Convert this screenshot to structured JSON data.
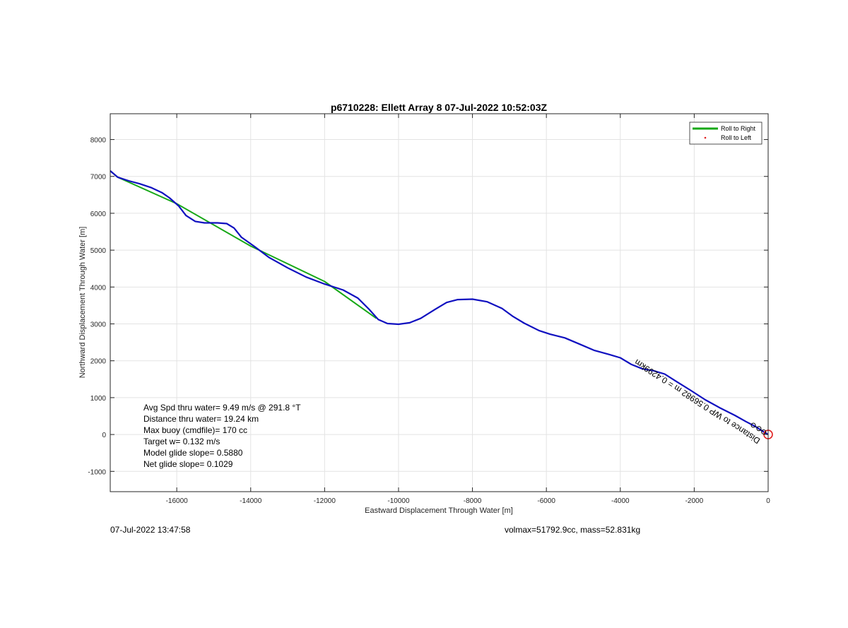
{
  "chart_data": {
    "type": "line",
    "title": "p6710228: Ellett Array 8 07-Jul-2022 10:52:03Z",
    "xlabel": "Eastward Displacement Through Water [m]",
    "ylabel": "Northward Displacement Through Water [m]",
    "xlim": [
      -17800,
      0
    ],
    "ylim": [
      -1550,
      8700
    ],
    "xticks": [
      -16000,
      -14000,
      -12000,
      -10000,
      -8000,
      -6000,
      -4000,
      -2000,
      0
    ],
    "yticks": [
      -1000,
      0,
      1000,
      2000,
      3000,
      4000,
      5000,
      6000,
      7000,
      8000
    ],
    "grid": true,
    "legend": {
      "placement": "top-right",
      "entries": [
        "Roll to Right",
        "Roll to Left"
      ]
    },
    "series": [
      {
        "name": "Roll to Right",
        "color": "#17a817",
        "style": "line",
        "points": [
          [
            -17800,
            7150
          ],
          [
            -17600,
            6980
          ],
          [
            -16000,
            6260
          ],
          [
            -14000,
            5110
          ],
          [
            -12000,
            4150
          ],
          [
            -10600,
            3150
          ]
        ]
      },
      {
        "name": "",
        "color": "#1010c0",
        "style": "line",
        "points": [
          [
            -17800,
            7150
          ],
          [
            -17600,
            6980
          ],
          [
            -17300,
            6880
          ],
          [
            -17000,
            6800
          ],
          [
            -16700,
            6700
          ],
          [
            -16400,
            6560
          ],
          [
            -16200,
            6420
          ],
          [
            -15950,
            6200
          ],
          [
            -15750,
            5940
          ],
          [
            -15500,
            5780
          ],
          [
            -15250,
            5740
          ],
          [
            -14900,
            5740
          ],
          [
            -14650,
            5720
          ],
          [
            -14450,
            5600
          ],
          [
            -14250,
            5350
          ],
          [
            -13900,
            5100
          ],
          [
            -13500,
            4800
          ],
          [
            -13000,
            4520
          ],
          [
            -12500,
            4270
          ],
          [
            -12000,
            4080
          ],
          [
            -11500,
            3920
          ],
          [
            -11100,
            3700
          ],
          [
            -10800,
            3400
          ],
          [
            -10550,
            3120
          ],
          [
            -10300,
            3010
          ],
          [
            -10000,
            2990
          ],
          [
            -9700,
            3030
          ],
          [
            -9400,
            3150
          ],
          [
            -9000,
            3400
          ],
          [
            -8700,
            3580
          ],
          [
            -8400,
            3660
          ],
          [
            -8000,
            3670
          ],
          [
            -7600,
            3600
          ],
          [
            -7200,
            3420
          ],
          [
            -6900,
            3200
          ],
          [
            -6600,
            3020
          ],
          [
            -6200,
            2820
          ],
          [
            -5900,
            2720
          ],
          [
            -5500,
            2620
          ],
          [
            -5100,
            2450
          ],
          [
            -4700,
            2280
          ],
          [
            -4300,
            2170
          ],
          [
            -4000,
            2080
          ],
          [
            -3700,
            1900
          ],
          [
            -3400,
            1780
          ],
          [
            -3100,
            1730
          ],
          [
            -2800,
            1640
          ],
          [
            -2500,
            1450
          ],
          [
            -2100,
            1200
          ],
          [
            -1700,
            940
          ],
          [
            -1300,
            720
          ],
          [
            -900,
            520
          ],
          [
            -600,
            350
          ],
          [
            -350,
            220
          ],
          [
            -150,
            90
          ],
          [
            0,
            0
          ]
        ]
      }
    ],
    "annotations": [
      "Avg Spd thru water=  9.49 m/s @ 291.8 °T",
      "Distance thru water= 19.24 km",
      "Max buoy (cmdfile)= 170 cc",
      "Target w= 0.132 m/s",
      "Model glide slope= 0.5880",
      "Net glide slope= 0.1029"
    ],
    "rotated_annotation": "Distance to WP 0.56982 m = 0.4299km",
    "end_marker": {
      "x": 0,
      "y": 0,
      "color": "#e02020"
    }
  },
  "footer": {
    "left": "07-Jul-2022 13:47:58",
    "right": "volmax=51792.9cc, mass=52.831kg"
  }
}
